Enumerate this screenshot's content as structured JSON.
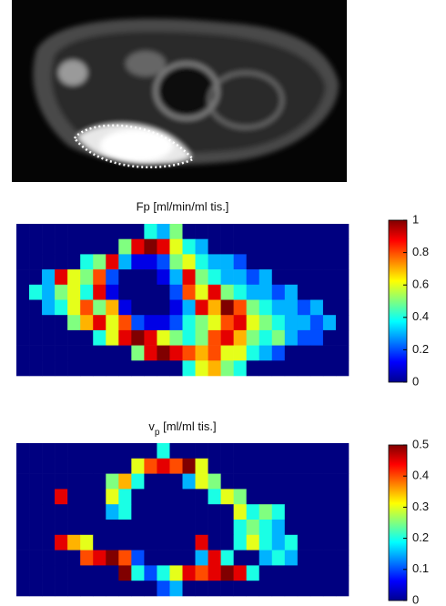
{
  "chart_data": [
    {
      "type": "heatmap",
      "title": "Fp [ml/min/ml tis.]",
      "zlim": [
        0,
        1
      ],
      "zticks": [
        0,
        0.2,
        0.4,
        0.6,
        0.8,
        1
      ],
      "z": [
        [
          0,
          0,
          0,
          0,
          0,
          0,
          0,
          0,
          0,
          0,
          0.4,
          0.3,
          0.5,
          0,
          0,
          0,
          0,
          0,
          0,
          0,
          0,
          0,
          0,
          0,
          0,
          0
        ],
        [
          0,
          0,
          0,
          0,
          0,
          0,
          0,
          0,
          0.5,
          0.9,
          1,
          0.9,
          0.6,
          0.4,
          0.3,
          0,
          0,
          0,
          0,
          0,
          0,
          0,
          0,
          0,
          0,
          0
        ],
        [
          0,
          0,
          0,
          0,
          0,
          0.4,
          0.5,
          0.9,
          0.3,
          0.1,
          0.1,
          0.2,
          0.5,
          0.6,
          0.4,
          0.3,
          0.3,
          0.2,
          0,
          0,
          0,
          0,
          0,
          0,
          0,
          0
        ],
        [
          0,
          0,
          0.3,
          0.9,
          0.6,
          0.5,
          0.8,
          0.2,
          0,
          0,
          0,
          0.1,
          0.3,
          0.9,
          0.5,
          0.4,
          0.3,
          0.3,
          0.2,
          0.3,
          0,
          0,
          0,
          0,
          0,
          0
        ],
        [
          0,
          0.4,
          0.3,
          0.5,
          0.6,
          0.4,
          0.9,
          0.1,
          0,
          0,
          0,
          0,
          0.2,
          0.8,
          0.6,
          0.9,
          0.5,
          0.4,
          0.3,
          0.3,
          0.2,
          0.3,
          0,
          0,
          0,
          0
        ],
        [
          0,
          0,
          0.3,
          0.4,
          0.6,
          0.8,
          0.5,
          0.7,
          0.1,
          0,
          0,
          0,
          0.1,
          0.3,
          0.9,
          0.7,
          1,
          0.8,
          0.5,
          0.4,
          0.3,
          0.3,
          0.2,
          0.3,
          0,
          0
        ],
        [
          0,
          0,
          0,
          0,
          0.5,
          0.7,
          0.9,
          0.6,
          0.8,
          0.2,
          0.1,
          0.1,
          0.2,
          0.4,
          0.5,
          0.6,
          0.8,
          0.9,
          0.6,
          0.5,
          0.4,
          0.3,
          0.3,
          0.2,
          0.3,
          0
        ],
        [
          0,
          0,
          0,
          0,
          0,
          0,
          0.4,
          0.6,
          0.9,
          1,
          0.9,
          0.6,
          0.5,
          0.4,
          0.5,
          0.8,
          0.9,
          0.7,
          0.5,
          0.4,
          0.5,
          0.3,
          0.2,
          0.2,
          0,
          0
        ],
        [
          0,
          0,
          0,
          0,
          0,
          0,
          0,
          0,
          0,
          0.5,
          0.9,
          1,
          0.9,
          0.8,
          0.7,
          0.8,
          0.6,
          0.6,
          0.4,
          0.3,
          0.2,
          0,
          0,
          0,
          0,
          0
        ],
        [
          0,
          0,
          0,
          0,
          0,
          0,
          0,
          0,
          0,
          0,
          0,
          0,
          0,
          0.4,
          0.6,
          0.7,
          0.5,
          0.4,
          0,
          0,
          0,
          0,
          0,
          0,
          0,
          0
        ]
      ]
    },
    {
      "type": "heatmap",
      "title": [
        "v",
        "p",
        " [ml/ml tis.]"
      ],
      "zlim": [
        0,
        0.5
      ],
      "zticks": [
        0,
        0.1,
        0.2,
        0.3,
        0.4,
        0.5
      ],
      "z": [
        [
          0,
          0,
          0,
          0,
          0,
          0,
          0,
          0,
          0,
          0,
          0,
          0.2,
          0,
          0,
          0,
          0,
          0,
          0,
          0,
          0,
          0,
          0,
          0,
          0,
          0,
          0
        ],
        [
          0,
          0,
          0,
          0,
          0,
          0,
          0,
          0,
          0,
          0.3,
          0.4,
          0.45,
          0.4,
          0.5,
          0.3,
          0,
          0,
          0,
          0,
          0,
          0,
          0,
          0,
          0,
          0,
          0
        ],
        [
          0,
          0,
          0,
          0,
          0,
          0,
          0,
          0.25,
          0.35,
          0.2,
          0,
          0,
          0,
          0.15,
          0.3,
          0.25,
          0,
          0,
          0,
          0,
          0,
          0,
          0,
          0,
          0,
          0
        ],
        [
          0,
          0,
          0,
          0.45,
          0,
          0,
          0,
          0.3,
          0.2,
          0,
          0,
          0,
          0,
          0,
          0,
          0.2,
          0.3,
          0.25,
          0,
          0,
          0,
          0,
          0,
          0,
          0,
          0
        ],
        [
          0,
          0,
          0,
          0,
          0,
          0,
          0,
          0.15,
          0.2,
          0,
          0,
          0,
          0,
          0,
          0,
          0,
          0,
          0.3,
          0.2,
          0.25,
          0.2,
          0,
          0,
          0,
          0,
          0
        ],
        [
          0,
          0,
          0,
          0,
          0,
          0,
          0,
          0,
          0,
          0,
          0,
          0,
          0,
          0,
          0,
          0,
          0,
          0.2,
          0.25,
          0.2,
          0.15,
          0,
          0,
          0,
          0,
          0
        ],
        [
          0,
          0,
          0,
          0.45,
          0.35,
          0.3,
          0,
          0,
          0,
          0,
          0,
          0,
          0,
          0,
          0.45,
          0,
          0,
          0.2,
          0.3,
          0.2,
          0.15,
          0.2,
          0,
          0,
          0,
          0
        ],
        [
          0,
          0,
          0,
          0,
          0,
          0.4,
          0.45,
          0.5,
          0.4,
          0.1,
          0,
          0,
          0,
          0,
          0.15,
          0.45,
          0.2,
          0,
          0,
          0.15,
          0.2,
          0.15,
          0,
          0,
          0,
          0
        ],
        [
          0,
          0,
          0,
          0,
          0,
          0,
          0,
          0,
          0.5,
          0.2,
          0.1,
          0.2,
          0.3,
          0.45,
          0.4,
          0.45,
          0.5,
          0.45,
          0.2,
          0,
          0,
          0,
          0,
          0,
          0,
          0
        ],
        [
          0,
          0,
          0,
          0,
          0,
          0,
          0,
          0,
          0,
          0,
          0,
          0.1,
          0.15,
          0,
          0,
          0,
          0,
          0,
          0,
          0,
          0,
          0,
          0,
          0,
          0,
          0
        ]
      ]
    }
  ]
}
